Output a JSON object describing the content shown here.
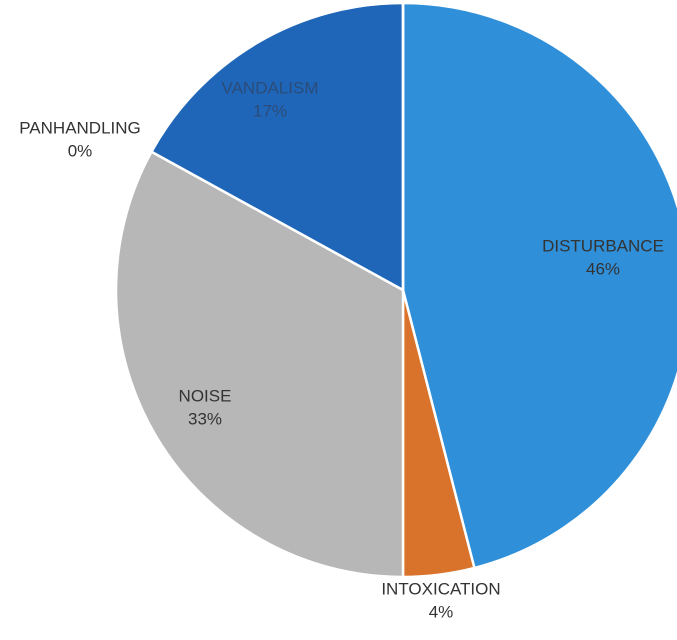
{
  "chart_data": {
    "type": "pie",
    "categories": [
      "DISTURBANCE",
      "INTOXICATION",
      "NOISE",
      "VANDALISM",
      "PANHANDLING"
    ],
    "values": [
      46,
      4,
      33,
      17,
      0
    ],
    "value_labels": [
      "46%",
      "4%",
      "33%",
      "17%",
      "0%"
    ],
    "colors": [
      "#2f8fd9",
      "#d9732b",
      "#b7b7b7",
      "#1f66b9",
      "#5b9bd5"
    ]
  }
}
